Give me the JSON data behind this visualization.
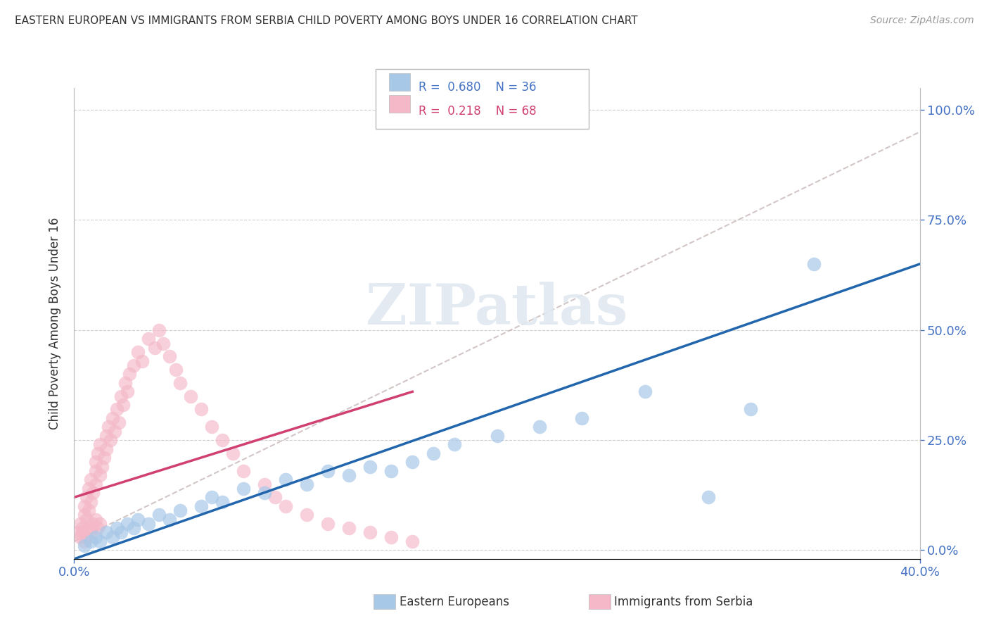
{
  "title": "EASTERN EUROPEAN VS IMMIGRANTS FROM SERBIA CHILD POVERTY AMONG BOYS UNDER 16 CORRELATION CHART",
  "source": "Source: ZipAtlas.com",
  "ylabel": "Child Poverty Among Boys Under 16",
  "xlim": [
    0.0,
    0.4
  ],
  "ylim": [
    -0.02,
    1.05
  ],
  "ytick_vals": [
    0.0,
    0.25,
    0.5,
    0.75,
    1.0
  ],
  "ytick_labels": [
    "0.0%",
    "25.0%",
    "50.0%",
    "75.0%",
    "100.0%"
  ],
  "background_color": "#ffffff",
  "grid_color": "#d0d0d0",
  "blue_color": "#a8c8e8",
  "pink_color": "#f4b8c8",
  "blue_line_color": "#2166ac",
  "pink_line_color": "#d04070",
  "grey_line_color": "#c8b8b8",
  "legend_R_blue": "0.680",
  "legend_N_blue": "36",
  "legend_R_pink": "0.218",
  "legend_N_pink": "68",
  "watermark": "ZIPatlas",
  "blue_scatter_x": [
    0.005,
    0.008,
    0.01,
    0.012,
    0.015,
    0.018,
    0.02,
    0.022,
    0.025,
    0.028,
    0.03,
    0.035,
    0.04,
    0.045,
    0.05,
    0.06,
    0.065,
    0.07,
    0.08,
    0.09,
    0.1,
    0.11,
    0.12,
    0.13,
    0.14,
    0.15,
    0.16,
    0.17,
    0.18,
    0.2,
    0.22,
    0.24,
    0.27,
    0.3,
    0.32,
    0.35
  ],
  "blue_scatter_y": [
    0.01,
    0.02,
    0.03,
    0.02,
    0.04,
    0.03,
    0.05,
    0.04,
    0.06,
    0.05,
    0.07,
    0.06,
    0.08,
    0.07,
    0.09,
    0.1,
    0.12,
    0.11,
    0.14,
    0.13,
    0.16,
    0.15,
    0.18,
    0.17,
    0.19,
    0.18,
    0.2,
    0.22,
    0.24,
    0.26,
    0.28,
    0.3,
    0.36,
    0.12,
    0.32,
    0.65
  ],
  "pink_scatter_x": [
    0.002,
    0.003,
    0.004,
    0.005,
    0.005,
    0.006,
    0.006,
    0.007,
    0.007,
    0.008,
    0.008,
    0.009,
    0.01,
    0.01,
    0.01,
    0.011,
    0.012,
    0.012,
    0.013,
    0.014,
    0.015,
    0.015,
    0.016,
    0.017,
    0.018,
    0.019,
    0.02,
    0.021,
    0.022,
    0.023,
    0.024,
    0.025,
    0.026,
    0.028,
    0.03,
    0.032,
    0.035,
    0.038,
    0.04,
    0.042,
    0.045,
    0.048,
    0.05,
    0.055,
    0.06,
    0.065,
    0.07,
    0.075,
    0.08,
    0.09,
    0.095,
    0.1,
    0.11,
    0.12,
    0.13,
    0.14,
    0.15,
    0.16,
    0.003,
    0.004,
    0.005,
    0.006,
    0.007,
    0.008,
    0.009,
    0.01,
    0.011,
    0.012
  ],
  "pink_scatter_y": [
    0.04,
    0.06,
    0.05,
    0.08,
    0.1,
    0.07,
    0.12,
    0.09,
    0.14,
    0.11,
    0.16,
    0.13,
    0.18,
    0.2,
    0.15,
    0.22,
    0.17,
    0.24,
    0.19,
    0.21,
    0.26,
    0.23,
    0.28,
    0.25,
    0.3,
    0.27,
    0.32,
    0.29,
    0.35,
    0.33,
    0.38,
    0.36,
    0.4,
    0.42,
    0.45,
    0.43,
    0.48,
    0.46,
    0.5,
    0.47,
    0.44,
    0.41,
    0.38,
    0.35,
    0.32,
    0.28,
    0.25,
    0.22,
    0.18,
    0.15,
    0.12,
    0.1,
    0.08,
    0.06,
    0.05,
    0.04,
    0.03,
    0.02,
    0.03,
    0.04,
    0.02,
    0.03,
    0.05,
    0.04,
    0.06,
    0.07,
    0.05,
    0.06
  ],
  "grey_line": [
    0.0,
    0.4,
    0.02,
    0.95
  ]
}
